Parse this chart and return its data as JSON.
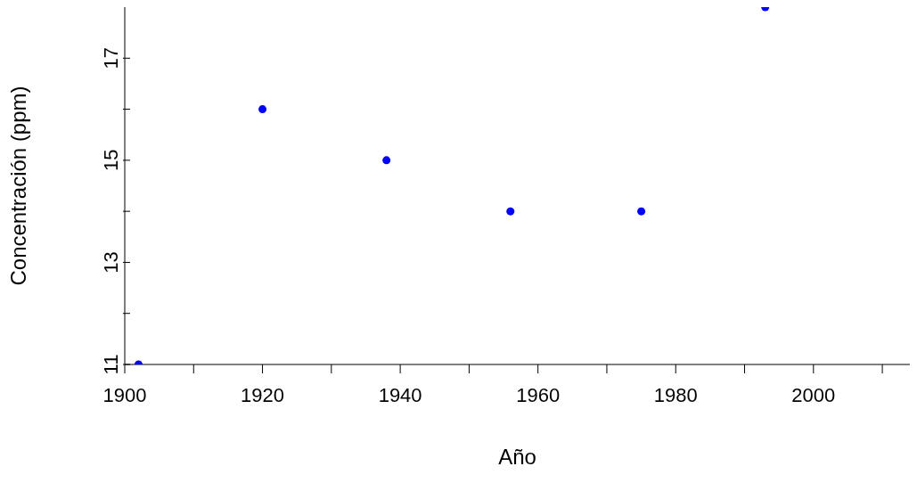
{
  "chart_data": {
    "type": "scatter",
    "xlabel": "Año",
    "ylabel": "Concentración (ppm)",
    "x": [
      1902,
      1920,
      1938,
      1956,
      1975,
      1993
    ],
    "values": [
      11,
      16,
      15,
      14,
      14,
      18
    ],
    "color": "#0000ff",
    "marker": "circle",
    "grid": false,
    "legend": false,
    "xlim": [
      1900,
      2014
    ],
    "ylim": [
      11,
      18
    ],
    "xticks": [
      1900,
      {
        "value": 1910,
        "label": null
      },
      1920,
      {
        "value": 1930,
        "label": null
      },
      1940,
      {
        "value": 1950,
        "label": null
      },
      1960,
      {
        "value": 1970,
        "label": null
      },
      1980,
      {
        "value": 1990,
        "label": null
      },
      2000,
      {
        "value": 2010,
        "label": null
      }
    ],
    "yticks": [
      11,
      {
        "value": 12,
        "label": null
      },
      13,
      {
        "value": 14,
        "label": null
      },
      15,
      {
        "value": 16,
        "label": null
      },
      17
    ]
  }
}
